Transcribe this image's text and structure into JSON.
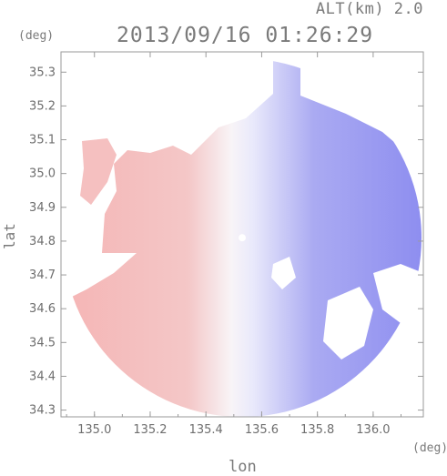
{
  "header": {
    "altitude_label": "ALT(km) 2.0",
    "timestamp": "2013/09/16 01:26:29"
  },
  "chart_data": {
    "type": "heatmap",
    "title": "2013/09/16 01:26:29",
    "xlabel": "lon",
    "ylabel": "lat",
    "x_unit": "(deg)",
    "y_unit": "(deg)",
    "xlim": [
      134.88,
      136.18
    ],
    "ylim": [
      34.28,
      35.36
    ],
    "x_ticks": [
      135.0,
      135.2,
      135.4,
      135.6,
      135.8,
      136.0
    ],
    "x_tick_labels": [
      "135.0",
      "135.2",
      "135.4",
      "135.6",
      "135.8",
      "136.0"
    ],
    "y_ticks": [
      34.3,
      34.4,
      34.5,
      34.6,
      34.7,
      34.8,
      34.9,
      35.0,
      35.1,
      35.2,
      35.3
    ],
    "y_tick_labels": [
      "34.3",
      "34.4",
      "34.5",
      "34.6",
      "34.7",
      "34.8",
      "34.9",
      "35.0",
      "35.1",
      "35.2",
      "35.3"
    ],
    "radar_center": {
      "lon": 135.53,
      "lat": 34.81
    },
    "color_positive": "#f2a3a3",
    "color_negative": "#8c8cf0",
    "color_neutral": "#f6f6ff",
    "frame_color": "#9a9a9a"
  }
}
